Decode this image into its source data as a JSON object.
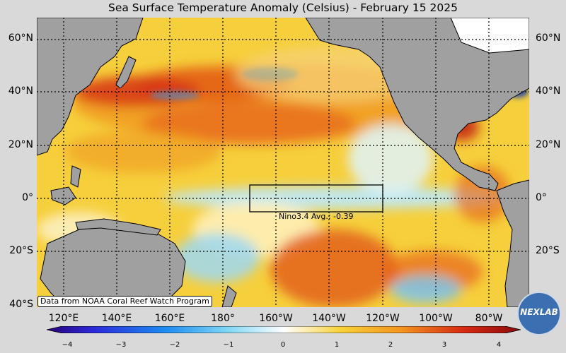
{
  "title": "Sea Surface Temperature Anomaly (Celsius) - February 15 2025",
  "lat_labels": [
    "60°N",
    "40°N",
    "20°N",
    "0°",
    "20°S",
    "40°S"
  ],
  "lon_labels": [
    "120°E",
    "140°E",
    "160°E",
    "180°",
    "160°W",
    "140°W",
    "120°W",
    "100°W",
    "80°W"
  ],
  "credit": "Data from NOAA Coral Reef Watch Program",
  "nino_box": {
    "label": "Nino3.4 Avg.: -0.39",
    "lat_range": [
      "5°S",
      "5°N"
    ],
    "lon_range": [
      "170°W",
      "120°W"
    ]
  },
  "colorbar": {
    "ticks": [
      "−4",
      "−3",
      "−2",
      "−1",
      "0",
      "1",
      "2",
      "3",
      "4"
    ],
    "min": -4,
    "max": 4
  },
  "logo": "NEXLAB",
  "colors": {
    "land": "#a0a0a0",
    "ice": "#ffffff",
    "warm": "#f3c233",
    "hot": "#d42a12",
    "cool": "#bfe8f4",
    "cold": "#3a9fe0"
  }
}
